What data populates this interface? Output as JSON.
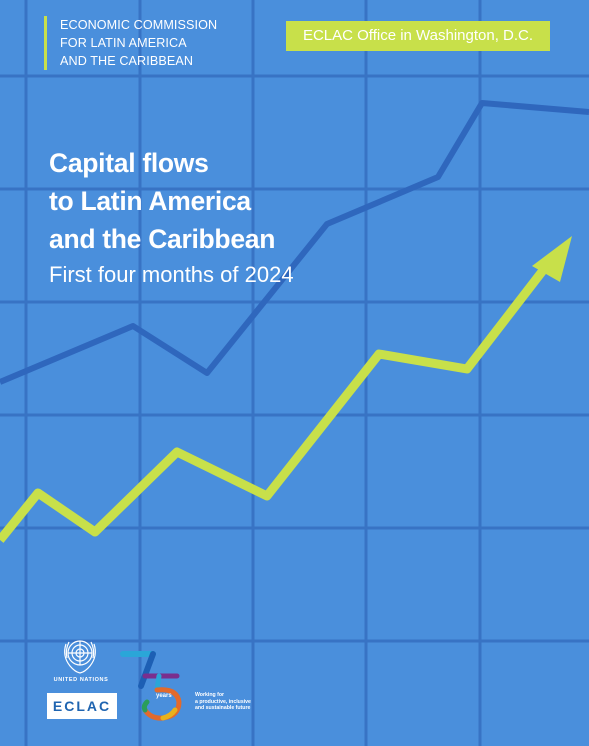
{
  "organization": {
    "name_lines": [
      "ECONOMIC COMMISSION",
      "FOR LATIN AMERICA",
      "AND THE CARIBBEAN"
    ]
  },
  "office_badge": "ECLAC Office in Washington, D.C.",
  "title": {
    "lines": [
      "Capital flows",
      "to Latin America",
      "and the Caribbean"
    ],
    "subtitle": "First four months of 2024"
  },
  "logos": {
    "un_label": "UNITED NATIONS",
    "eclac_label": "ECLAC",
    "anniversary_years_label": "years",
    "anniversary_tagline": [
      "Working for",
      "a productive, inclusive",
      "and sustainable future"
    ]
  },
  "colors": {
    "background": "#4a8fdc",
    "grid_lines": "#3873c4",
    "accent_lime": "#c8e04a",
    "dark_line": "#2f67bd"
  }
}
